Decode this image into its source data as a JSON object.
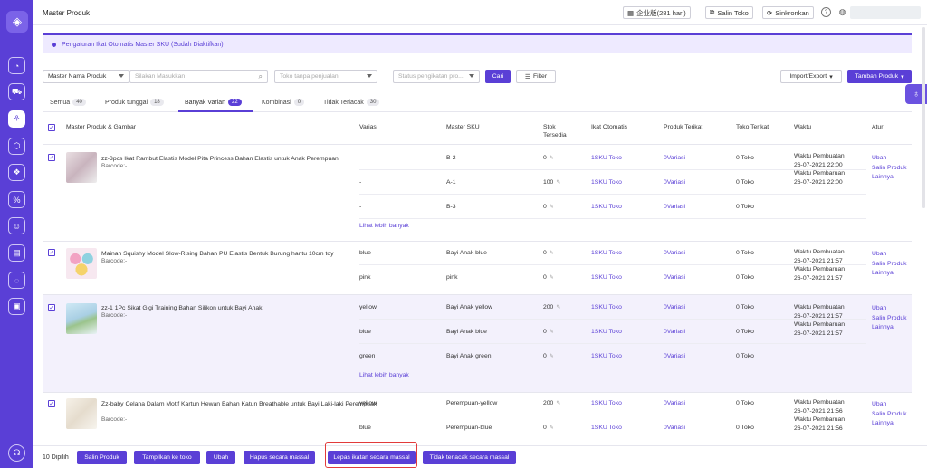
{
  "app": {
    "title": "Master Produk"
  },
  "topbar": {
    "date_label": "企业版(281 hari)",
    "copy_store": "Salin Toko",
    "sync": "Sinkronkan",
    "help_icon": "?"
  },
  "banner": {
    "text": "Pengaturan Ikat Otomatis Master SKU (Sudah Diaktifkan)"
  },
  "filters": {
    "field_select": "Master Nama Produk",
    "search_placeholder": "Silakan Masukkan",
    "store_placeholder": "Toko tanpa penjualan",
    "status_placeholder": "Status pengikatan pro...",
    "search_button": "Cari",
    "filter_button": "Filter",
    "import_export": "Import/Export",
    "add_product": "Tambah Produk"
  },
  "tabs": [
    {
      "label": "Semua",
      "count": "40"
    },
    {
      "label": "Produk tunggal",
      "count": "18"
    },
    {
      "label": "Banyak Varian",
      "count": "22"
    },
    {
      "label": "Kombinasi",
      "count": "0"
    },
    {
      "label": "Tidak Terlacak",
      "count": "30"
    }
  ],
  "columns": {
    "product": "Master Produk & Gambar",
    "variant": "Variasi",
    "sku": "Master SKU",
    "stock": "Stok",
    "stock2": "Tersedia",
    "auto_bind": "Ikat Otomatis",
    "linked_product": "Produk Terikat",
    "linked_store": "Toko Terikat",
    "time": "Waktu",
    "manage": "Atur"
  },
  "common": {
    "barcode": "Barcode:-",
    "see_more": "Lihat lebih banyak",
    "created": "Waktu Pembuatan",
    "updated": "Waktu Pembaruan",
    "edit": "Ubah",
    "copy_product": "Salin Produk",
    "more": "Lainnya"
  },
  "products": [
    {
      "name": "zz-3pcs Ikat Rambut Elastis Model Pita Princess Bahan Elastis untuk Anak Perempuan",
      "created_at": "26-07-2021 22:00",
      "updated_at": "26-07-2021 22:00",
      "rows": [
        {
          "variant": "-",
          "sku": "B-2",
          "stock": "0",
          "bind": "1SKU Toko",
          "product": "0Variasi",
          "store": "0 Toko"
        },
        {
          "variant": "-",
          "sku": "A-1",
          "stock": "100",
          "bind": "1SKU Toko",
          "product": "0Variasi",
          "store": "0 Toko"
        },
        {
          "variant": "-",
          "sku": "B-3",
          "stock": "0",
          "bind": "1SKU Toko",
          "product": "0Variasi",
          "store": "0 Toko"
        }
      ]
    },
    {
      "name": "Mainan Squishy Model Slow-Rising Bahan PU Elastis Bentuk Burung hantu 10cm toy",
      "created_at": "26-07-2021 21:57",
      "updated_at": "26-07-2021 21:57",
      "rows": [
        {
          "variant": "blue",
          "sku": "Bayi Anak blue",
          "stock": "0",
          "bind": "1SKU Toko",
          "product": "0Variasi",
          "store": "0 Toko"
        },
        {
          "variant": "pink",
          "sku": "pink",
          "stock": "0",
          "bind": "1SKU Toko",
          "product": "0Variasi",
          "store": "0 Toko"
        }
      ]
    },
    {
      "name": "zz-1 1Pc Sikat Gigi Training Bahan Silikon untuk Bayi Anak",
      "created_at": "26-07-2021 21:57",
      "updated_at": "26-07-2021 21:57",
      "rows": [
        {
          "variant": "yellow",
          "sku": "Bayi Anak yellow",
          "stock": "200",
          "bind": "1SKU Toko",
          "product": "0Variasi",
          "store": "0 Toko"
        },
        {
          "variant": "blue",
          "sku": "Bayi Anak blue",
          "stock": "0",
          "bind": "1SKU Toko",
          "product": "0Variasi",
          "store": "0 Toko"
        },
        {
          "variant": "green",
          "sku": "Bayi Anak green",
          "stock": "0",
          "bind": "1SKU Toko",
          "product": "0Variasi",
          "store": "0 Toko"
        }
      ]
    },
    {
      "name": "Zz-baby Celana Dalam Motif Kartun Hewan Bahan Katun Breathable untuk Bayi Laki-laki Perempuan",
      "created_at": "26-07-2021 21:56",
      "updated_at": "26-07-2021 21:56",
      "rows": [
        {
          "variant": "yellow",
          "sku": "Perempuan-yellow",
          "stock": "200",
          "bind": "1SKU Toko",
          "product": "0Variasi",
          "store": "0 Toko"
        },
        {
          "variant": "blue",
          "sku": "Perempuan-blue",
          "stock": "0",
          "bind": "1SKU Toko",
          "product": "0Variasi",
          "store": "0 Toko"
        }
      ]
    }
  ],
  "bottom": {
    "selected": "10 Dipilih",
    "actions": [
      "Salin Produk",
      "Tampilkan ke toko",
      "Ubah",
      "Hapus secara massal",
      "Lepas ikatan secara massal",
      "Tidak terlacak secara massal"
    ]
  },
  "colors": {
    "accent": "#5a3fd6",
    "highlight": "#e23b3b"
  }
}
